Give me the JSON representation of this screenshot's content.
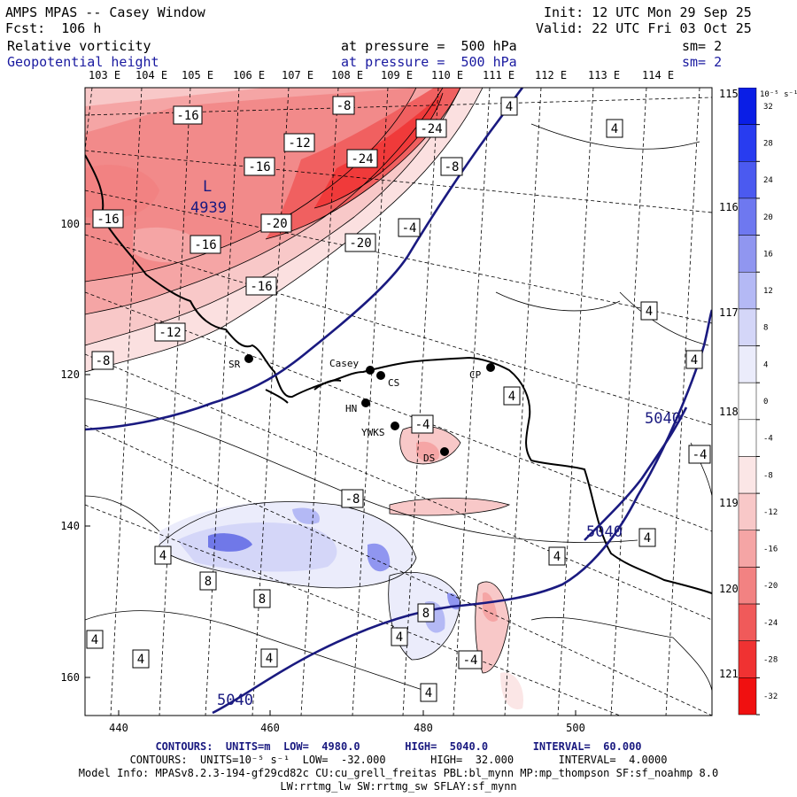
{
  "header": {
    "title": "AMPS MPAS -- Casey Window",
    "forecast": "Fcst:  106 h",
    "init": "Init: 12 UTC Mon 29 Sep 25",
    "valid": "Valid: 22 UTC Fri 03 Oct 25",
    "field1_name": "Relative vorticity",
    "field1_level": "at pressure =  500 hPa",
    "field1_sm": "sm= 2",
    "field2_name": "Geopotential height",
    "field2_level": "at pressure =  500 hPa",
    "field2_sm": "sm= 2"
  },
  "map": {
    "lon_labels_top": [
      "103 E",
      "104 E",
      "105 E",
      "106 E",
      "107 E",
      "108 E",
      "109 E",
      "110 E",
      "111 E",
      "112 E",
      "113 E",
      "114 E"
    ],
    "lon_labels_right": [
      "115 E",
      "116 E",
      "117 E",
      "118 E",
      "119 E",
      "120 E",
      "121 E"
    ],
    "y_ticks": [
      "100",
      "120",
      "140",
      "160"
    ],
    "x_ticks": [
      "440",
      "460",
      "480",
      "500"
    ],
    "low_label": "L",
    "low_value": "4939",
    "height_labels": [
      "5040",
      "5040",
      "5040"
    ],
    "stations": [
      {
        "name": "SR"
      },
      {
        "name": "Casey"
      },
      {
        "name": "CS"
      },
      {
        "name": "HN"
      },
      {
        "name": "CP"
      },
      {
        "name": "YWKS"
      },
      {
        "name": "DS"
      }
    ],
    "vort_labels": [
      "-16",
      "-8",
      "4",
      "4",
      "-24",
      "-12",
      "-16",
      "-8",
      "-24",
      "-16",
      "-20",
      "-4",
      "-20",
      "-16",
      "-16",
      "-12",
      "4",
      "-8",
      "4",
      "4",
      "-4",
      "-4",
      "-8",
      "4",
      "4",
      "4",
      "8",
      "8",
      "8",
      "4",
      "4",
      "4",
      "4",
      "-4",
      "4"
    ]
  },
  "colorbar": {
    "unit": "10⁻⁵ s⁻¹",
    "ticks": [
      "32",
      "28",
      "24",
      "20",
      "16",
      "12",
      "8",
      "4",
      "0",
      "-4",
      "-8",
      "-12",
      "-16",
      "-20",
      "-24",
      "-28",
      "-32"
    ],
    "colors": [
      "#0a1ee6",
      "#283cf0",
      "#4b5af0",
      "#6e78f0",
      "#9096f0",
      "#b4b9f5",
      "#d4d6f8",
      "#ebecfb",
      "#ffffff",
      "#ffffff",
      "#fbe6e6",
      "#f8c8c8",
      "#f5a5a5",
      "#f28282",
      "#f05a5a",
      "#f03232",
      "#f01010"
    ]
  },
  "footer": {
    "line1": "CONTOURS:  UNITS=m  LOW=  4980.0       HIGH=  5040.0       INTERVAL=  60.000",
    "line2": "CONTOURS:  UNITS=10⁻⁵ s⁻¹  LOW=  -32.000       HIGH=  32.000       INTERVAL=  4.0000",
    "line3": "Model Info: MPASv8.2.3-194-gf29cd82c CU:cu_grell_freitas PBL:bl_mynn MP:mp_thompson SF:sf_noahmp 8.0",
    "line4": "LW:rrtmg_lw SW:rrtmg_sw SFLAY:sf_mynn"
  }
}
